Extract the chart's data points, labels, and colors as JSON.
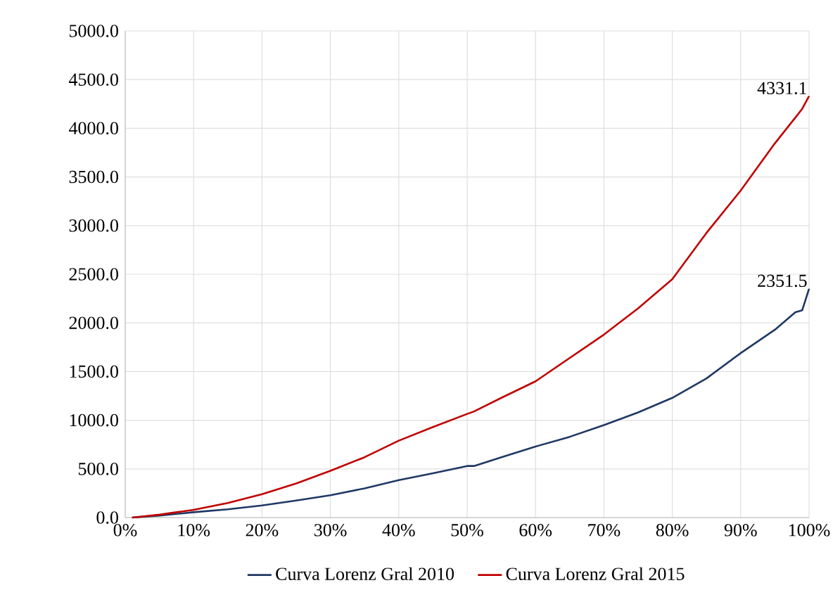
{
  "chart_data": {
    "type": "line",
    "x": [
      1,
      5,
      10,
      15,
      20,
      25,
      30,
      35,
      40,
      45,
      50,
      51,
      55,
      60,
      65,
      70,
      75,
      80,
      85,
      90,
      95,
      98,
      99,
      100
    ],
    "series": [
      {
        "name": "Curva Lorenz Gral 2010",
        "color": "#1f3864",
        "values": [
          0,
          20,
          55,
          85,
          125,
          175,
          230,
          300,
          385,
          455,
          530,
          530,
          620,
          730,
          830,
          950,
          1080,
          1230,
          1430,
          1690,
          1930,
          2110,
          2130,
          2351.5
        ]
      },
      {
        "name": "Curva Lorenz Gral 2015",
        "color": "#c00000",
        "values": [
          0,
          30,
          80,
          150,
          240,
          350,
          480,
          620,
          790,
          930,
          1065,
          1090,
          1230,
          1400,
          1640,
          1880,
          2150,
          2450,
          2925,
          3360,
          3845,
          4110,
          4200,
          4331.1
        ]
      }
    ],
    "xlim": [
      0,
      100
    ],
    "xticks": [
      {
        "value": 0,
        "label": "0%"
      },
      {
        "value": 10,
        "label": "10%"
      },
      {
        "value": 20,
        "label": "20%"
      },
      {
        "value": 30,
        "label": "30%"
      },
      {
        "value": 40,
        "label": "40%"
      },
      {
        "value": 50,
        "label": "50%"
      },
      {
        "value": 60,
        "label": "60%"
      },
      {
        "value": 70,
        "label": "70%"
      },
      {
        "value": 80,
        "label": "80%"
      },
      {
        "value": 90,
        "label": "90%"
      },
      {
        "value": 100,
        "label": "100%"
      }
    ],
    "ylim": [
      0,
      5000
    ],
    "yticks": [
      {
        "value": 0,
        "label": "0.0"
      },
      {
        "value": 500,
        "label": "500.0"
      },
      {
        "value": 1000,
        "label": "1000.0"
      },
      {
        "value": 1500,
        "label": "1500.0"
      },
      {
        "value": 2000,
        "label": "2000.0"
      },
      {
        "value": 2500,
        "label": "2500.0"
      },
      {
        "value": 3000,
        "label": "3000.0"
      },
      {
        "value": 3500,
        "label": "3500.0"
      },
      {
        "value": 4000,
        "label": "4000.0"
      },
      {
        "value": 4500,
        "label": "4500.0"
      },
      {
        "value": 5000,
        "label": "5000.0"
      }
    ],
    "annotations": [
      {
        "text": "4331.1",
        "x": 100,
        "y": 4331.1
      },
      {
        "text": "2351.5",
        "x": 100,
        "y": 2351.5
      }
    ],
    "grid": true,
    "legend": "bottom",
    "marker": "none",
    "line_style": "solid"
  }
}
